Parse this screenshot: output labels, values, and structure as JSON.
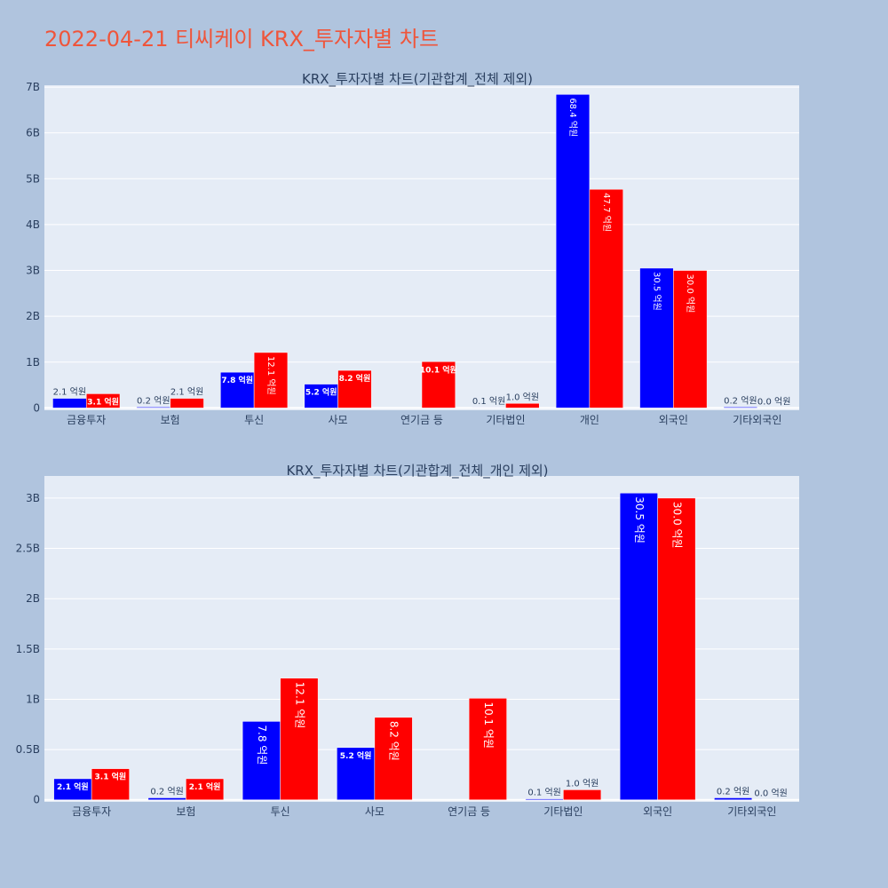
{
  "page": {
    "title": "2022-04-21 티씨케이 KRX_투자자별 차트"
  },
  "colors": {
    "background": "#b0c4de",
    "plot_bg": "#e5ecf6",
    "title": "#ef553b",
    "series_blue": "#0000ff",
    "series_red": "#ff0000"
  },
  "chart_data": [
    {
      "type": "bar",
      "title": "KRX_투자자별 차트(기관합계_전체 제외)",
      "categories": [
        "금융투자",
        "보험",
        "투신",
        "사모",
        "연기금 등",
        "기타법인",
        "개인",
        "외국인",
        "기타외국인"
      ],
      "series": [
        {
          "color": "#0000ff",
          "values": [
            210000000,
            20000000,
            780000000,
            520000000,
            0,
            10000000,
            6840000000,
            3050000000,
            20000000
          ],
          "labels": [
            "2.1 억원",
            "0.2 억원",
            "7.8 억원",
            "5.2 억원",
            "",
            "0.1 억원",
            "68.4 억원",
            "30.5 억원",
            "0.2 억원"
          ]
        },
        {
          "color": "#ff0000",
          "values": [
            310000000,
            210000000,
            1210000000,
            820000000,
            1010000000,
            100000000,
            4770000000,
            3000000000,
            0
          ],
          "labels": [
            "3.1 억원",
            "2.1 억원",
            "12.1 억원",
            "8.2 억원",
            "10.1 억원",
            "1.0 억원",
            "47.7 억원",
            "30.0 억원",
            "0.0 억원"
          ]
        }
      ],
      "ylim": [
        0,
        7000000000
      ],
      "yticks": [
        {
          "v": 0,
          "t": "0"
        },
        {
          "v": 1000000000,
          "t": "1B"
        },
        {
          "v": 2000000000,
          "t": "2B"
        },
        {
          "v": 3000000000,
          "t": "3B"
        },
        {
          "v": 4000000000,
          "t": "4B"
        },
        {
          "v": 5000000000,
          "t": "5B"
        },
        {
          "v": 6000000000,
          "t": "6B"
        },
        {
          "v": 7000000000,
          "t": "7B"
        }
      ],
      "grid": true
    },
    {
      "type": "bar",
      "title": "KRX_투자자별 차트(기관합계_전체_개인 제외)",
      "categories": [
        "금융투자",
        "보험",
        "투신",
        "사모",
        "연기금 등",
        "기타법인",
        "외국인",
        "기타외국인"
      ],
      "series": [
        {
          "color": "#0000ff",
          "values": [
            210000000,
            20000000,
            780000000,
            520000000,
            0,
            10000000,
            3050000000,
            20000000
          ],
          "labels": [
            "2.1 억원",
            "0.2 억원",
            "7.8 억원",
            "5.2 억원",
            "",
            "0.1 억원",
            "30.5 억원",
            "0.2 억원"
          ]
        },
        {
          "color": "#ff0000",
          "values": [
            310000000,
            210000000,
            1210000000,
            820000000,
            1010000000,
            100000000,
            3000000000,
            0
          ],
          "labels": [
            "3.1 억원",
            "2.1 억원",
            "12.1 억원",
            "8.2 억원",
            "10.1 억원",
            "1.0 억원",
            "30.0 억원",
            "0.0 억원"
          ]
        }
      ],
      "ylim": [
        0,
        3200000000
      ],
      "yticks": [
        {
          "v": 0,
          "t": "0"
        },
        {
          "v": 500000000,
          "t": "0.5B"
        },
        {
          "v": 1000000000,
          "t": "1B"
        },
        {
          "v": 1500000000,
          "t": "1.5B"
        },
        {
          "v": 2000000000,
          "t": "2B"
        },
        {
          "v": 2500000000,
          "t": "2.5B"
        },
        {
          "v": 3000000000,
          "t": "3B"
        }
      ],
      "grid": true
    }
  ]
}
